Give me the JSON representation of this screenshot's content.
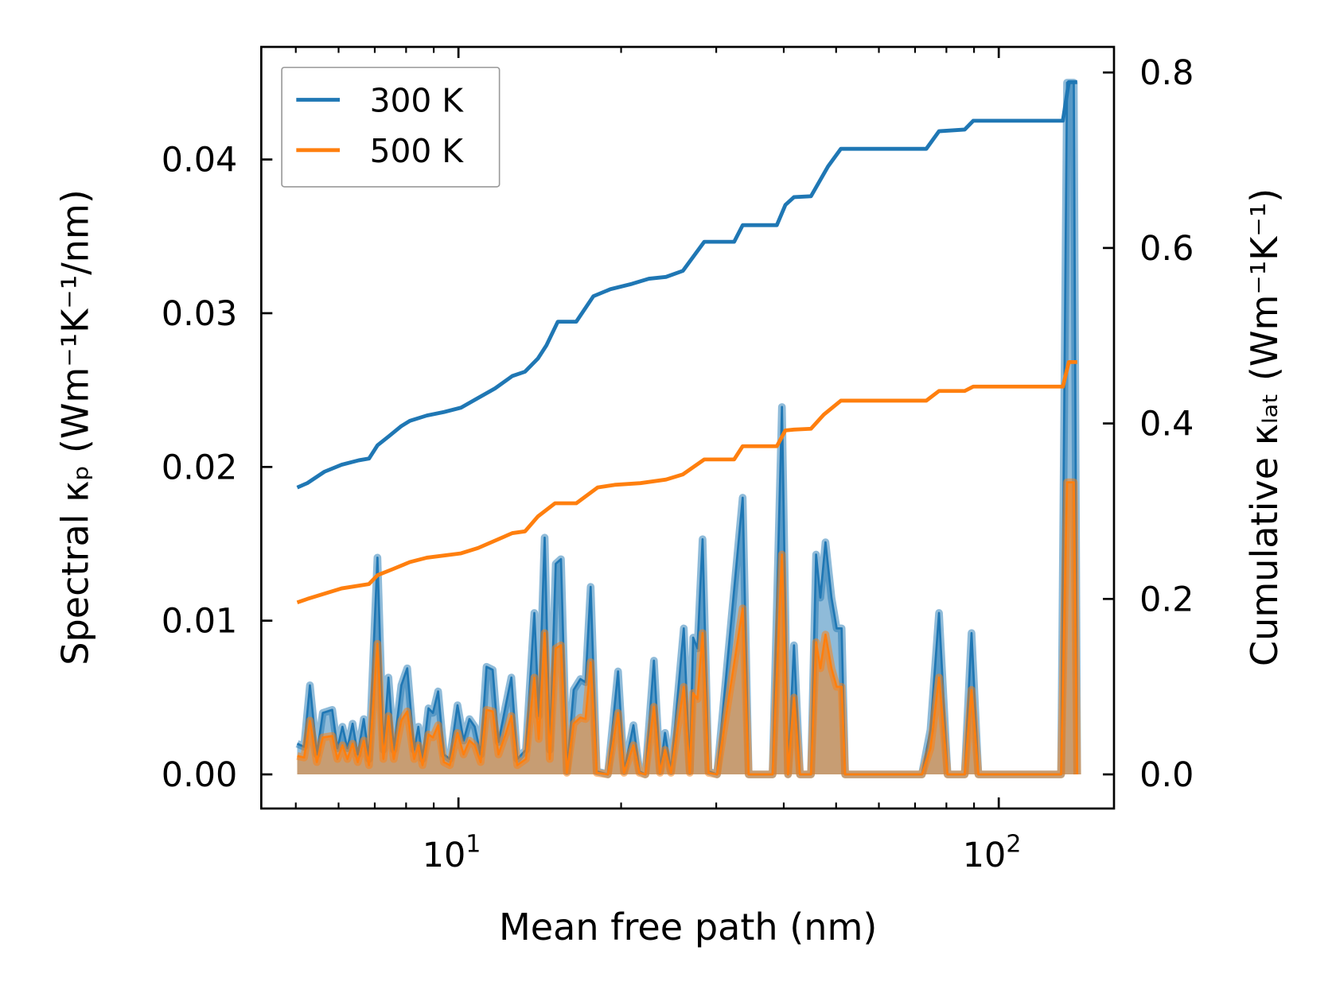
{
  "chart_data": {
    "type": "line",
    "title": "",
    "xlabel": "Mean free path (nm)",
    "ylabel_left": "Spectral κₚ (Wm⁻¹K⁻¹/nm)",
    "ylabel_right": "Cumulative κₗₐₜ (Wm⁻¹K⁻¹)",
    "xscale": "log",
    "xlim": [
      4.6,
      155
    ],
    "ylim_left": [
      -0.0022,
      0.0473
    ],
    "ylim_right": [
      -0.038,
      0.83
    ],
    "x_ticks": [
      {
        "value": 10,
        "base": "10",
        "exp": "1"
      },
      {
        "value": 100,
        "base": "10",
        "exp": "2"
      }
    ],
    "y_ticks_left": [
      {
        "value": 0,
        "label": "0.00"
      },
      {
        "value": 0.01,
        "label": "0.01"
      },
      {
        "value": 0.02,
        "label": "0.02"
      },
      {
        "value": 0.03,
        "label": "0.03"
      },
      {
        "value": 0.04,
        "label": "0.04"
      }
    ],
    "y_ticks_right": [
      {
        "value": 0,
        "label": "0.0"
      },
      {
        "value": 0.2,
        "label": "0.2"
      },
      {
        "value": 0.4,
        "label": "0.4"
      },
      {
        "value": 0.6,
        "label": "0.6"
      },
      {
        "value": 0.8,
        "label": "0.8"
      }
    ],
    "legend": {
      "placement": "top-left",
      "entries": [
        {
          "label": "300 K",
          "color": "#1f77b4"
        },
        {
          "label": "500 K",
          "color": "#ff7f0e"
        }
      ]
    },
    "grid": false,
    "spectral": {
      "x": [
        5.03,
        5.18,
        5.31,
        5.47,
        5.61,
        5.84,
        5.97,
        6.1,
        6.23,
        6.37,
        6.51,
        6.68,
        6.83,
        7.08,
        7.26,
        7.42,
        7.59,
        7.84,
        8.04,
        8.28,
        8.43,
        8.58,
        8.8,
        8.97,
        9.17,
        9.4,
        9.64,
        9.96,
        10.22,
        10.48,
        10.72,
        10.99,
        11.27,
        11.57,
        11.86,
        12.22,
        12.53,
        12.85,
        13.33,
        13.82,
        14.08,
        14.44,
        14.76,
        15.14,
        15.48,
        15.87,
        16.34,
        16.82,
        17.19,
        17.57,
        18.03,
        18.9,
        19.74,
        20.25,
        21.08,
        21.62,
        22.18,
        23.0,
        23.6,
        24.12,
        24.74,
        26.13,
        26.8,
        27.19,
        27.69,
        28.3,
        29.03,
        30.1,
        33.58,
        34.44,
        38.14,
        39.7,
        40.73,
        41.79,
        42.86,
        44.92,
        45.91,
        46.76,
        47.79,
        49.02,
        50.11,
        51.19,
        51.95,
        72.08,
        74.75,
        77.52,
        80.39,
        86.48,
        89.03,
        91.66,
        130.4,
        133.8,
        137.7,
        139.7
      ],
      "series": [
        {
          "name": "300 K",
          "color": "#1f77b4",
          "values": [
            0.002,
            0.0018,
            0.0058,
            0.0013,
            0.004,
            0.0042,
            0.0017,
            0.0031,
            0.0017,
            0.0033,
            0.0013,
            0.0036,
            0.001,
            0.0141,
            0.0016,
            0.0063,
            0.0016,
            0.0058,
            0.0069,
            0.0016,
            0.0031,
            0.001,
            0.0043,
            0.004,
            0.0054,
            0.0013,
            0.001,
            0.0045,
            0.0022,
            0.0036,
            0.0031,
            0.0013,
            0.007,
            0.0068,
            0.0021,
            0.0044,
            0.0063,
            0.001,
            0.0016,
            0.0105,
            0.0038,
            0.0154,
            0.0016,
            0.0137,
            0.014,
            0.0002,
            0.0055,
            0.0062,
            0.006,
            0.0122,
            0.0002,
            0,
            0.0067,
            0.0002,
            0.0032,
            0.0002,
            0,
            0.0074,
            0.0002,
            0.0027,
            0.0002,
            0.0095,
            0.0002,
            0.0089,
            0.0082,
            0.0153,
            0.0002,
            0,
            0.018,
            0,
            0,
            0.0239,
            0,
            0.0084,
            0,
            0,
            0.0143,
            0.0115,
            0.0151,
            0.0115,
            0.0095,
            0.0095,
            0,
            0,
            0.0029,
            0.0105,
            0,
            0,
            0.0092,
            0,
            0,
            0.045,
            0.045,
            0
          ]
        },
        {
          "name": "500 K",
          "color": "#ff7f0e",
          "values": [
            0.0012,
            0.0011,
            0.0035,
            0.0008,
            0.0024,
            0.0025,
            0.001,
            0.0019,
            0.001,
            0.002,
            0.0008,
            0.0022,
            0.0006,
            0.0085,
            0.001,
            0.0038,
            0.001,
            0.0035,
            0.0041,
            0.001,
            0.0019,
            0.0006,
            0.0026,
            0.0024,
            0.0032,
            0.0008,
            0.0006,
            0.0027,
            0.0013,
            0.0022,
            0.0019,
            0.0008,
            0.0042,
            0.0041,
            0.0013,
            0.0026,
            0.0038,
            0.0006,
            0.001,
            0.0063,
            0.0023,
            0.0092,
            0.001,
            0.0082,
            0.0084,
            0.0001,
            0.0033,
            0.0037,
            0.0036,
            0.0073,
            0.0001,
            0,
            0.004,
            0.0001,
            0.0019,
            0.0001,
            0,
            0.0044,
            0.0001,
            0.0016,
            0.0001,
            0.0057,
            0.0001,
            0.0053,
            0.0049,
            0.0092,
            0.0001,
            0,
            0.0108,
            0,
            0,
            0.0143,
            0,
            0.005,
            0,
            0,
            0.0086,
            0.0069,
            0.0091,
            0.0069,
            0.0057,
            0.0057,
            0,
            0,
            0.0017,
            0.0063,
            0,
            0,
            0.0055,
            0,
            0,
            0.019,
            0.019,
            0
          ]
        }
      ]
    },
    "cumulative": [
      {
        "name": "300 K",
        "color": "#1f77b4",
        "x": [
          5.03,
          5.25,
          5.65,
          6.08,
          6.54,
          6.83,
          7.08,
          7.42,
          7.84,
          8.13,
          8.74,
          9.4,
          10.11,
          10.87,
          11.69,
          12.58,
          13.28,
          14.03,
          14.55,
          15.27,
          16.52,
          17.77,
          19.11,
          20.93,
          22.51,
          24.21,
          26.03,
          28.51,
          32.38,
          33.58,
          38.84,
          40.28,
          41.79,
          44.92,
          48.31,
          51.02,
          73.42,
          77.52,
          86.48,
          89.69,
          131.4,
          134.8,
          139.7
        ],
        "values": [
          0.327,
          0.332,
          0.345,
          0.353,
          0.358,
          0.36,
          0.375,
          0.385,
          0.397,
          0.403,
          0.409,
          0.413,
          0.418,
          0.429,
          0.44,
          0.454,
          0.459,
          0.474,
          0.489,
          0.516,
          0.516,
          0.545,
          0.553,
          0.559,
          0.565,
          0.567,
          0.574,
          0.607,
          0.607,
          0.626,
          0.626,
          0.649,
          0.658,
          0.659,
          0.693,
          0.713,
          0.713,
          0.733,
          0.735,
          0.745,
          0.745,
          0.789,
          0.789
        ]
      },
      {
        "name": "500 K",
        "color": "#ff7f0e",
        "x": [
          5.03,
          5.25,
          6.08,
          6.83,
          7.08,
          7.56,
          8.13,
          8.74,
          10.11,
          10.87,
          12.58,
          13.28,
          14.03,
          15.09,
          16.52,
          18.09,
          19.46,
          21.71,
          24.21,
          26.03,
          28.51,
          32.38,
          33.58,
          38.84,
          40.28,
          41.79,
          44.92,
          47.44,
          51.02,
          73.42,
          77.52,
          86.48,
          89.69,
          131.4,
          134.8,
          139.7
        ],
        "values": [
          0.196,
          0.2,
          0.212,
          0.217,
          0.227,
          0.234,
          0.242,
          0.247,
          0.252,
          0.258,
          0.275,
          0.277,
          0.294,
          0.309,
          0.309,
          0.327,
          0.33,
          0.332,
          0.336,
          0.342,
          0.359,
          0.359,
          0.374,
          0.374,
          0.392,
          0.393,
          0.394,
          0.41,
          0.426,
          0.426,
          0.437,
          0.437,
          0.442,
          0.442,
          0.47,
          0.47
        ]
      }
    ]
  }
}
